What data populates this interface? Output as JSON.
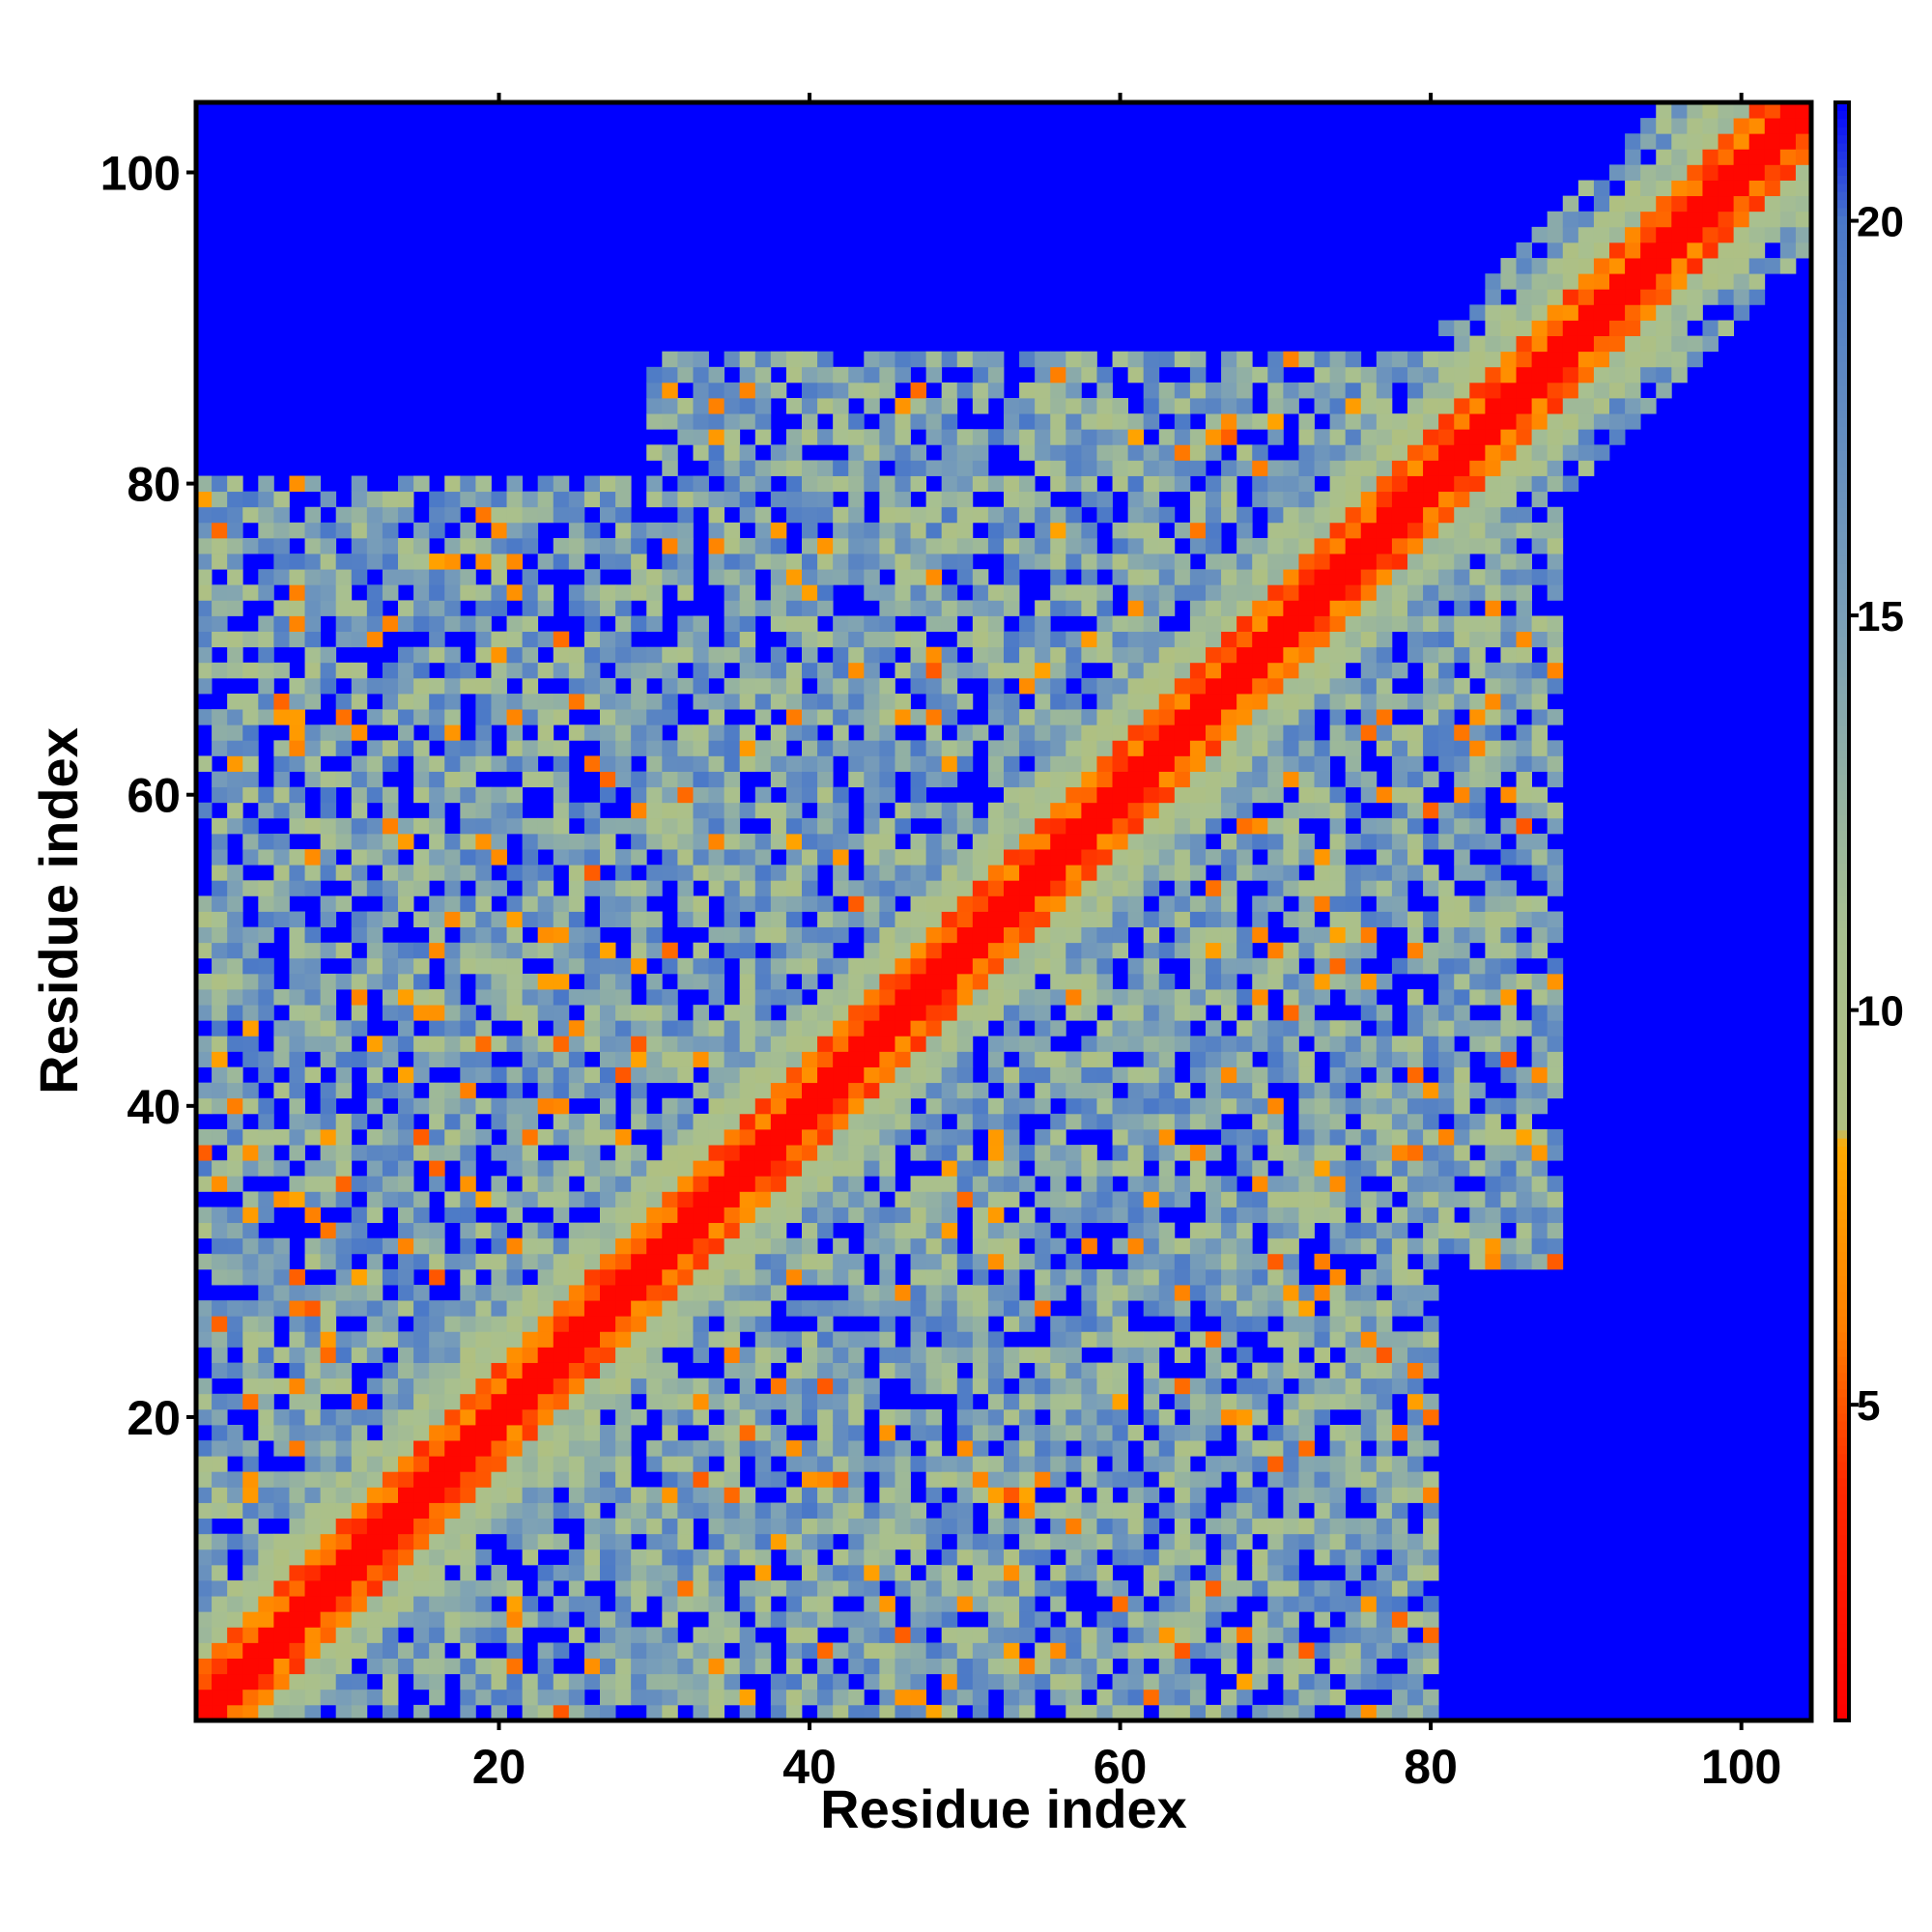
{
  "chart_data": {
    "type": "heatmap",
    "title": "",
    "xlabel": "Residue index",
    "ylabel": "Residue index",
    "n_residues": 104,
    "xlim": [
      1,
      104
    ],
    "ylim": [
      1,
      104
    ],
    "x_ticks": [
      20,
      40,
      60,
      80,
      100
    ],
    "y_ticks": [
      20,
      40,
      60,
      80,
      100
    ],
    "x_tick_labels": [
      "20",
      "40",
      "60",
      "80",
      "100"
    ],
    "y_tick_labels": [
      "20",
      "40",
      "60",
      "80",
      "100"
    ],
    "colorbar": {
      "min": 1,
      "max": 21.5,
      "ticks": [
        5,
        10,
        15,
        20
      ],
      "tick_labels": [
        "5",
        "10",
        "15",
        "20"
      ],
      "stops": [
        {
          "value": 1,
          "color": "#ff0000"
        },
        {
          "value": 4,
          "color": "#ff2a00"
        },
        {
          "value": 6,
          "color": "#ff8000"
        },
        {
          "value": 8.3,
          "color": "#ffaa00"
        },
        {
          "value": 8.5,
          "color": "#b0c080"
        },
        {
          "value": 11,
          "color": "#a8c090"
        },
        {
          "value": 15,
          "color": "#7a9fb8"
        },
        {
          "value": 20,
          "color": "#4a78c8"
        },
        {
          "value": 21.5,
          "color": "#0000ff"
        }
      ]
    },
    "background_value": 21.5,
    "contact_regions": [
      {
        "x": [
          1,
          104
        ],
        "y": [
          1,
          104
        ],
        "description": "main diagonal band, distance grows with |i-j|"
      },
      {
        "x": [
          33,
          57
        ],
        "y": [
          1,
          88
        ],
        "description": "broad contact patch"
      },
      {
        "x": [
          58,
          88
        ],
        "y": [
          30,
          82
        ],
        "description": "contact patch"
      },
      {
        "x": [
          1,
          33
        ],
        "y": [
          33,
          80
        ],
        "description": "contact patch"
      },
      {
        "x": [
          1,
          58
        ],
        "y": [
          1,
          33
        ],
        "description": "contact patch"
      }
    ],
    "grid": false,
    "legend": "colorbar-right"
  }
}
